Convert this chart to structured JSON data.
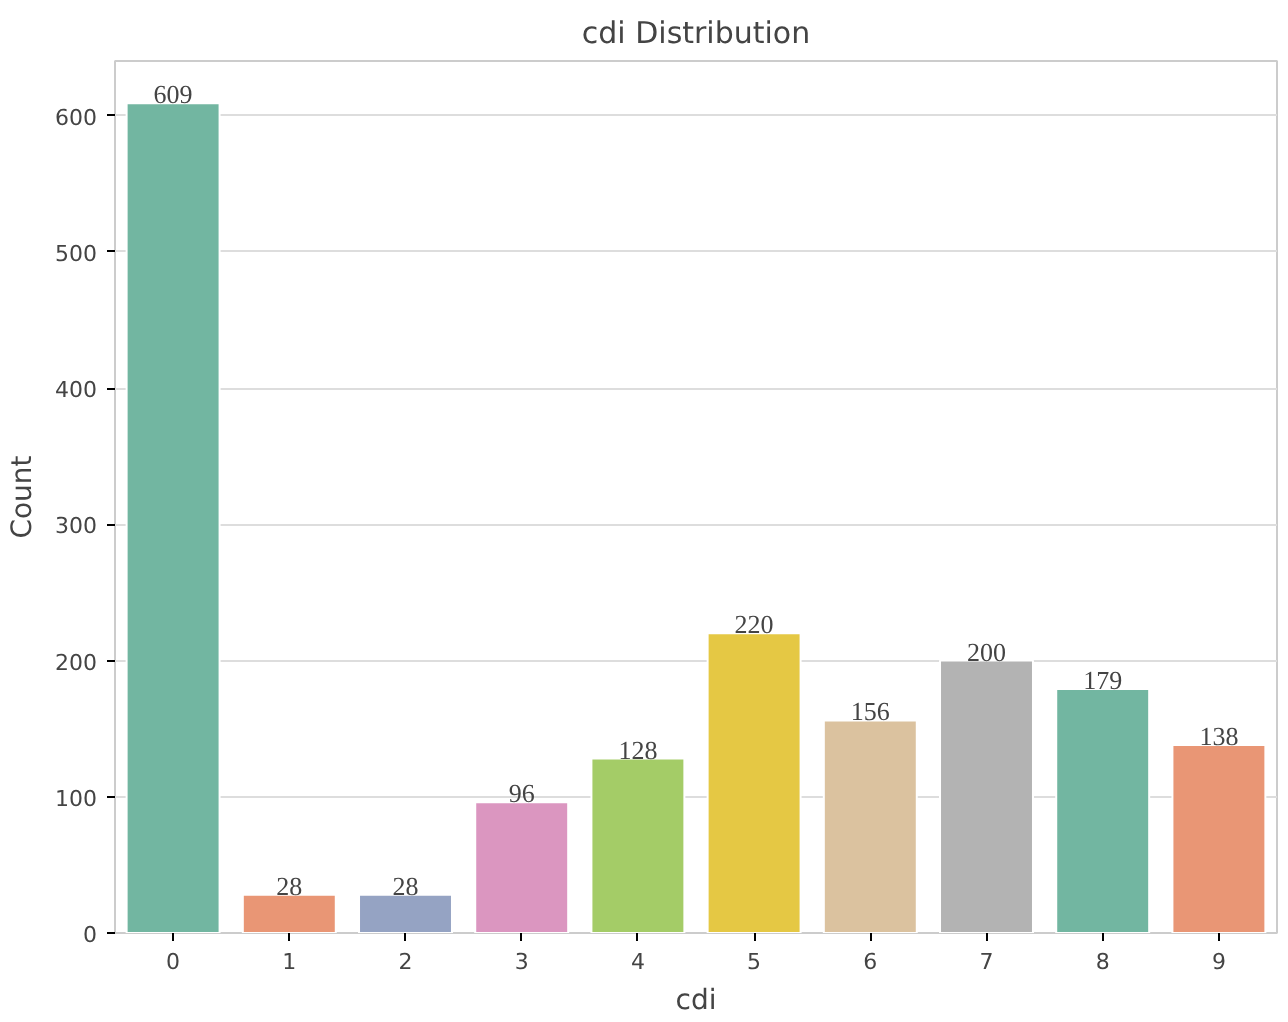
{
  "chart_data": {
    "type": "bar",
    "title": "cdi Distribution",
    "xlabel": "cdi",
    "ylabel": "Count",
    "categories": [
      "0",
      "1",
      "2",
      "3",
      "4",
      "5",
      "6",
      "7",
      "8",
      "9"
    ],
    "values": [
      609,
      28,
      28,
      96,
      128,
      220,
      156,
      200,
      179,
      138
    ],
    "colors": [
      "#72b6a1",
      "#e99675",
      "#95a3c3",
      "#db96c0",
      "#a4cc67",
      "#e5c844",
      "#dbc29f",
      "#b3b3b3",
      "#72b6a1",
      "#e99675"
    ],
    "ylim": [
      0,
      640
    ],
    "yticks": [
      0,
      100,
      200,
      300,
      400,
      500,
      600
    ],
    "grid": "y",
    "data_labels": true
  }
}
